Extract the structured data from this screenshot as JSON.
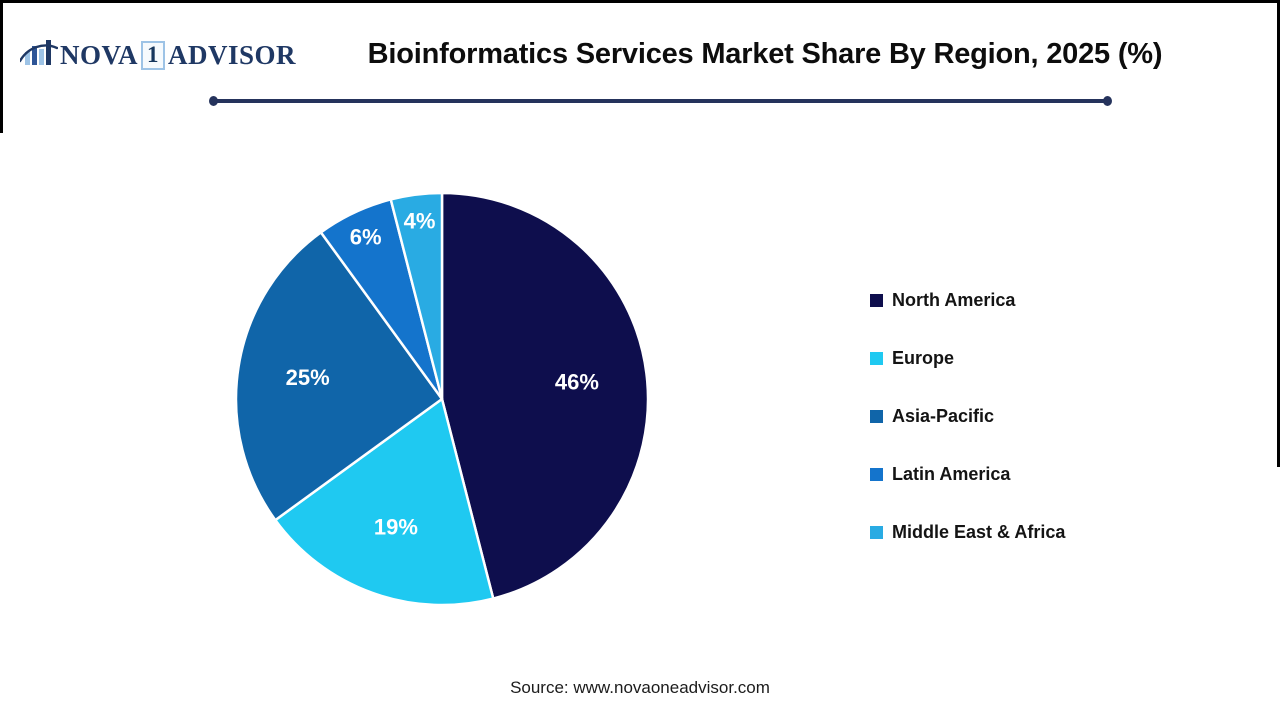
{
  "logo": {
    "icon": "bar-chart-swoosh-icon",
    "text_left": "NOVA",
    "digit": "1",
    "text_right": "ADVISOR"
  },
  "chart_data": {
    "type": "pie",
    "title": "Bioinformatics Services Market Share By Region, 2025 (%)",
    "categories": [
      "North America",
      "Europe",
      "Asia-Pacific",
      "Latin America",
      "Middle East & Africa"
    ],
    "values": [
      46,
      19,
      25,
      6,
      4
    ],
    "slice_labels": [
      "46%",
      "19%",
      "25%",
      "6%",
      "4%"
    ],
    "colors": [
      "#0E0E4D",
      "#1FC9F1",
      "#1065A9",
      "#1474CC",
      "#29ABE3"
    ],
    "slice_label_color": "#FFFFFF",
    "units": "%",
    "start_angle_deg": 0,
    "direction": "clockwise",
    "legend_position": "right",
    "accent_line_color": "#25335C"
  },
  "footer": {
    "source": "Source: www.novaoneadvisor.com"
  }
}
